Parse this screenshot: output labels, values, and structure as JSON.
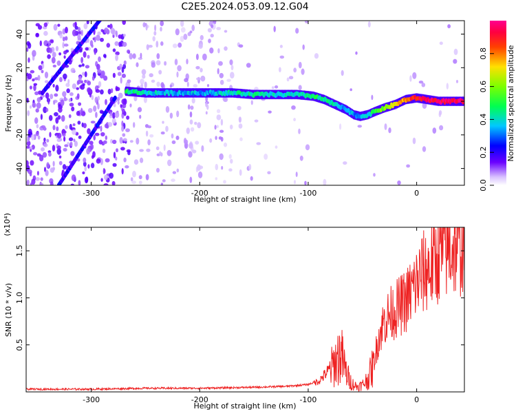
{
  "title": "C2E5.2024.053.09.12.G04",
  "top_panel": {
    "xlabel": "Height of straight line (km)",
    "ylabel": "Frequency (Hz)",
    "x_ticks": [
      "-300",
      "-200",
      "-100",
      "0"
    ],
    "y_ticks": [
      "40",
      "20",
      "0",
      "-20",
      "-40"
    ],
    "colorbar_label": "Normalized spectral amplitude",
    "colorbar_ticks": [
      "0.0",
      "0.2",
      "0.4",
      "0.6",
      "0.8"
    ]
  },
  "bottom_panel": {
    "xlabel": "Height of straight line (km)",
    "ylabel": "SNR (10 * v/v)",
    "scale_note": "(x10⁴)",
    "x_ticks": [
      "-300",
      "-200",
      "-100",
      "0"
    ],
    "y_ticks": [
      "0.5",
      "1.0",
      "1.5"
    ]
  },
  "chart_data": [
    {
      "type": "heatmap",
      "title": "C2E5.2024.053.09.12.G04",
      "xlabel": "Height of straight line (km)",
      "ylabel": "Frequency (Hz)",
      "xlim": [
        -360,
        44
      ],
      "ylim": [
        -50,
        48
      ],
      "x_ticks": [
        -300,
        -200,
        -100,
        0
      ],
      "y_ticks": [
        40,
        20,
        0,
        -20,
        -40
      ],
      "colorbar": {
        "label": "Normalized spectral amplitude",
        "range": [
          0,
          1
        ],
        "ticks": [
          0.0,
          0.2,
          0.4,
          0.6,
          0.8
        ]
      },
      "ridge": {
        "x": [
          -268,
          -250,
          -230,
          -210,
          -190,
          -170,
          -150,
          -130,
          -110,
          -95,
          -85,
          -75,
          -65,
          -58,
          -52,
          -45,
          -38,
          -30,
          -20,
          -10,
          0,
          10,
          20,
          30,
          44
        ],
        "y": [
          6,
          5,
          5,
          5,
          5,
          5,
          4,
          4,
          4,
          3,
          1,
          -2,
          -5,
          -8,
          -9,
          -8,
          -6,
          -4,
          -2,
          1,
          2,
          1,
          0,
          0,
          0
        ],
        "amplitude": [
          0.45,
          0.4,
          0.35,
          0.35,
          0.35,
          0.4,
          0.45,
          0.4,
          0.4,
          0.45,
          0.45,
          0.4,
          0.35,
          0.35,
          0.3,
          0.4,
          0.5,
          0.6,
          0.7,
          0.8,
          0.9,
          0.95,
          0.95,
          0.95,
          0.95
        ]
      },
      "diagonal_streaks": [
        {
          "x": [
            -345,
            -290
          ],
          "y": [
            5,
            50
          ]
        },
        {
          "x": [
            -330,
            -278
          ],
          "y": [
            -50,
            2
          ]
        }
      ]
    },
    {
      "type": "line",
      "xlabel": "Height of straight line (km)",
      "ylabel": "SNR (10 * v/v)",
      "scale_note": "x10^4",
      "xlim": [
        -360,
        44
      ],
      "ylim": [
        0,
        1.75
      ],
      "x_ticks": [
        -300,
        -200,
        -100,
        0
      ],
      "y_ticks": [
        0.5,
        1.0,
        1.5
      ],
      "color": "#ee2222",
      "series": [
        {
          "x": [
            -360,
            -300,
            -250,
            -200,
            -150,
            -120,
            -100,
            -90,
            -80,
            -75,
            -70,
            -65,
            -60,
            -55,
            -50,
            -45,
            -40,
            -35,
            -30,
            -25,
            -20,
            -15,
            -10,
            -5,
            0,
            5,
            10,
            15,
            20,
            25,
            30,
            35,
            40,
            44
          ],
          "values": [
            0.03,
            0.03,
            0.04,
            0.04,
            0.05,
            0.06,
            0.08,
            0.12,
            0.25,
            0.35,
            0.45,
            0.22,
            0.1,
            0.06,
            0.08,
            0.15,
            0.3,
            0.6,
            0.78,
            0.85,
            0.9,
            0.95,
            1.0,
            1.1,
            1.2,
            1.3,
            1.35,
            1.4,
            1.5,
            1.55,
            1.58,
            1.6,
            1.62,
            1.62
          ]
        }
      ]
    }
  ]
}
